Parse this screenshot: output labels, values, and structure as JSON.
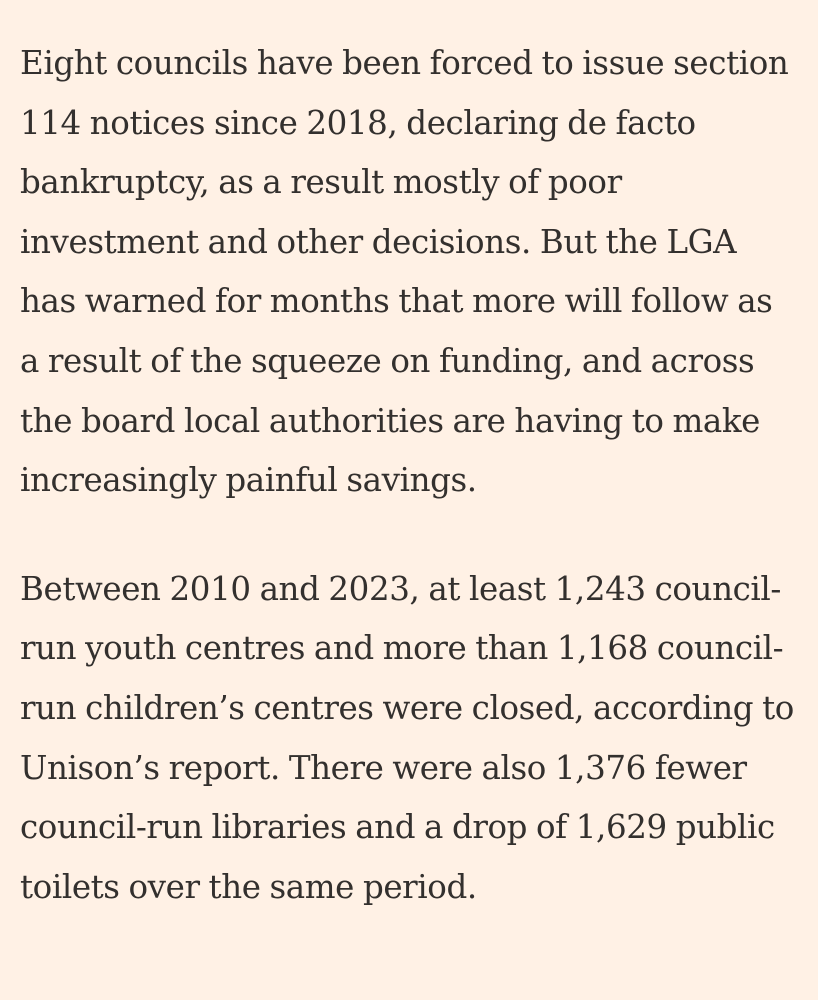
{
  "article": {
    "paragraphs": [
      "Eight councils have been forced to issue section 114 notices since 2018, declaring de facto bankruptcy, as a result mostly of poor investment and other decisions. But the LGA has warned for months that more will follow as a result of the squeeze on funding, and across the board local authorities are having to make increasingly painful savings.",
      "Between 2010 and 2023, at least 1,243 council-run youth centres and more than 1,168 council-run children’s centres were closed, according to Unison’s report. There were also 1,376 fewer council-run libraries and a drop of 1,629 public toilets over the same period."
    ]
  },
  "colors": {
    "background": "#fff1e5",
    "text": "#33302e"
  }
}
